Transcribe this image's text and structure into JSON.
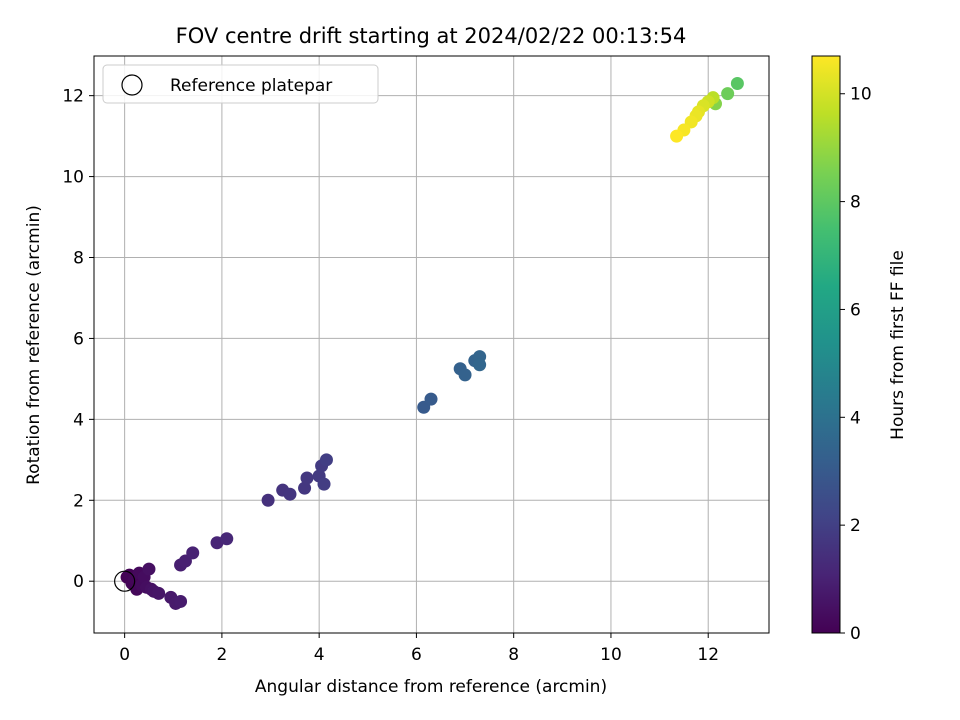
{
  "chart_data": {
    "type": "scatter",
    "title": "FOV centre drift starting at 2024/02/22 00:13:54",
    "xlabel": "Angular distance from reference (arcmin)",
    "ylabel": "Rotation from reference (arcmin)",
    "xlim": [
      -0.63,
      13.25
    ],
    "ylim": [
      -1.28,
      12.98
    ],
    "xticks": [
      0,
      2,
      4,
      6,
      8,
      10,
      12
    ],
    "yticks": [
      0,
      2,
      4,
      6,
      8,
      10,
      12
    ],
    "grid": true,
    "legend": {
      "position": "top-left",
      "entries": [
        "Reference platepar"
      ]
    },
    "reference_point": {
      "x": 0,
      "y": 0,
      "marker": "open-circle"
    },
    "colorbar": {
      "label": "Hours from first FF file",
      "colormap": "viridis",
      "range": [
        0,
        10.7
      ],
      "ticks": [
        0,
        2,
        4,
        6,
        8,
        10
      ]
    },
    "series": [
      {
        "points": [
          {
            "x": 0.05,
            "y": 0.1,
            "c": 0.0
          },
          {
            "x": 0.1,
            "y": 0.15,
            "c": 0.05
          },
          {
            "x": 0.15,
            "y": -0.05,
            "c": 0.1
          },
          {
            "x": 0.2,
            "y": 0.05,
            "c": 0.15
          },
          {
            "x": 0.25,
            "y": -0.2,
            "c": 0.2
          },
          {
            "x": 0.3,
            "y": 0.2,
            "c": 0.25
          },
          {
            "x": 0.35,
            "y": -0.1,
            "c": 0.3
          },
          {
            "x": 0.4,
            "y": 0.1,
            "c": 0.35
          },
          {
            "x": 0.45,
            "y": -0.15,
            "c": 0.4
          },
          {
            "x": 0.5,
            "y": 0.3,
            "c": 0.45
          },
          {
            "x": 0.55,
            "y": -0.2,
            "c": 0.5
          },
          {
            "x": 0.6,
            "y": -0.25,
            "c": 0.55
          },
          {
            "x": 0.7,
            "y": -0.3,
            "c": 0.6
          },
          {
            "x": 0.95,
            "y": -0.4,
            "c": 0.7
          },
          {
            "x": 1.05,
            "y": -0.55,
            "c": 0.75
          },
          {
            "x": 1.15,
            "y": -0.5,
            "c": 0.8
          },
          {
            "x": 1.15,
            "y": 0.4,
            "c": 0.9
          },
          {
            "x": 1.25,
            "y": 0.5,
            "c": 0.95
          },
          {
            "x": 1.4,
            "y": 0.7,
            "c": 1.0
          },
          {
            "x": 1.9,
            "y": 0.95,
            "c": 1.1
          },
          {
            "x": 2.1,
            "y": 1.05,
            "c": 1.2
          },
          {
            "x": 2.95,
            "y": 2.0,
            "c": 1.5
          },
          {
            "x": 3.25,
            "y": 2.25,
            "c": 1.6
          },
          {
            "x": 3.4,
            "y": 2.15,
            "c": 1.65
          },
          {
            "x": 3.7,
            "y": 2.3,
            "c": 1.7
          },
          {
            "x": 3.75,
            "y": 2.55,
            "c": 1.75
          },
          {
            "x": 4.0,
            "y": 2.6,
            "c": 1.8
          },
          {
            "x": 4.05,
            "y": 2.85,
            "c": 1.85
          },
          {
            "x": 4.1,
            "y": 2.4,
            "c": 1.9
          },
          {
            "x": 4.15,
            "y": 3.0,
            "c": 1.95
          },
          {
            "x": 6.15,
            "y": 4.3,
            "c": 3.0
          },
          {
            "x": 6.3,
            "y": 4.5,
            "c": 3.05
          },
          {
            "x": 6.9,
            "y": 5.25,
            "c": 3.3
          },
          {
            "x": 7.0,
            "y": 5.1,
            "c": 3.35
          },
          {
            "x": 7.2,
            "y": 5.45,
            "c": 3.4
          },
          {
            "x": 7.3,
            "y": 5.55,
            "c": 3.45
          },
          {
            "x": 7.3,
            "y": 5.35,
            "c": 3.5
          },
          {
            "x": 12.6,
            "y": 12.3,
            "c": 7.9
          },
          {
            "x": 12.4,
            "y": 12.05,
            "c": 8.3
          },
          {
            "x": 12.15,
            "y": 11.8,
            "c": 8.7
          },
          {
            "x": 12.1,
            "y": 11.95,
            "c": 9.6
          },
          {
            "x": 12.0,
            "y": 11.85,
            "c": 9.9
          },
          {
            "x": 11.9,
            "y": 11.75,
            "c": 10.1
          },
          {
            "x": 11.8,
            "y": 11.6,
            "c": 10.3
          },
          {
            "x": 11.75,
            "y": 11.5,
            "c": 10.4
          },
          {
            "x": 11.65,
            "y": 11.35,
            "c": 10.5
          },
          {
            "x": 11.5,
            "y": 11.15,
            "c": 10.6
          },
          {
            "x": 11.35,
            "y": 11.0,
            "c": 10.7
          }
        ]
      }
    ]
  }
}
